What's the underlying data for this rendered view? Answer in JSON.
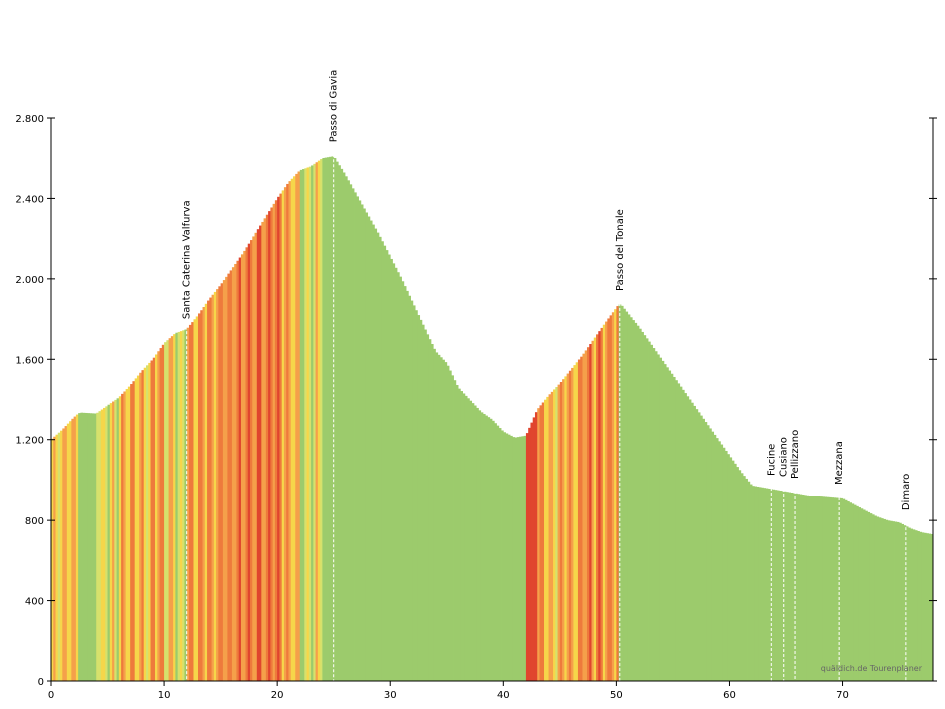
{
  "chart_data": {
    "type": "area",
    "title": "",
    "xlabel": "",
    "ylabel": "",
    "xlim": [
      0,
      78
    ],
    "ylim": [
      0,
      2800
    ],
    "x_ticks": [
      0,
      10,
      20,
      30,
      40,
      50,
      60,
      70
    ],
    "y_ticks": [
      0,
      400,
      800,
      1200,
      1600,
      2000,
      2400,
      2800
    ],
    "y_tick_labels": [
      "0",
      "400",
      "800",
      "1.200",
      "1.600",
      "2.000",
      "2.400",
      "2.800"
    ],
    "x_tick_labels": [
      "0",
      "10",
      "20",
      "30",
      "40",
      "50",
      "60",
      "70"
    ],
    "series": [
      {
        "x": [
          0,
          1,
          2,
          2.5,
          4,
          5,
          6,
          7,
          8,
          9,
          10,
          11,
          12,
          13,
          14,
          15,
          16,
          17,
          18,
          19,
          20,
          21,
          22,
          23,
          24,
          25,
          26,
          27,
          28,
          29,
          30,
          31,
          32,
          33,
          34,
          35,
          36,
          37,
          38,
          39,
          40,
          41,
          42,
          43,
          44,
          45,
          46,
          47,
          48,
          49,
          50.3,
          51,
          52,
          53,
          54,
          55,
          56,
          57,
          58,
          59,
          60,
          61,
          62,
          63,
          64,
          65,
          66,
          67,
          68,
          69,
          70,
          71,
          72,
          73,
          74,
          75,
          76,
          77,
          78
        ],
        "y": [
          1200,
          1250,
          1310,
          1335,
          1330,
          1370,
          1410,
          1470,
          1540,
          1600,
          1680,
          1730,
          1750,
          1820,
          1900,
          1970,
          2050,
          2130,
          2220,
          2310,
          2400,
          2480,
          2540,
          2560,
          2600,
          2610,
          2520,
          2420,
          2320,
          2220,
          2110,
          2000,
          1880,
          1760,
          1640,
          1580,
          1460,
          1400,
          1340,
          1300,
          1240,
          1210,
          1220,
          1350,
          1420,
          1480,
          1550,
          1620,
          1700,
          1780,
          1880,
          1830,
          1760,
          1680,
          1600,
          1520,
          1440,
          1360,
          1280,
          1200,
          1120,
          1040,
          970,
          960,
          950,
          940,
          930,
          920,
          920,
          915,
          910,
          880,
          850,
          820,
          800,
          790,
          760,
          740,
          730
        ]
      }
    ],
    "slope_colors": {
      "flat": "#9ccb6c",
      "gentle": "#d6e16c",
      "moderate": "#f6d64a",
      "steep": "#f5a04a",
      "very_steep": "#ee7a3c",
      "extreme": "#e0452e"
    },
    "places": [
      {
        "name": "Santa Caterina Valfurva",
        "x": 12.0,
        "elev": 1740
      },
      {
        "name": "Passo di Gavia",
        "x": 25.0,
        "elev": 2620
      },
      {
        "name": "Passo del Tonale",
        "x": 50.3,
        "elev": 1880
      },
      {
        "name": "Fucine",
        "x": 63.7,
        "elev": 960
      },
      {
        "name": "Cusiano",
        "x": 64.8,
        "elev": 955
      },
      {
        "name": "Pellizzano",
        "x": 65.8,
        "elev": 945
      },
      {
        "name": "Mezzana",
        "x": 69.7,
        "elev": 915
      },
      {
        "name": "Dimaro",
        "x": 75.6,
        "elev": 790
      }
    ],
    "grid": false,
    "watermark": "quäldich.de Tourenplaner"
  }
}
